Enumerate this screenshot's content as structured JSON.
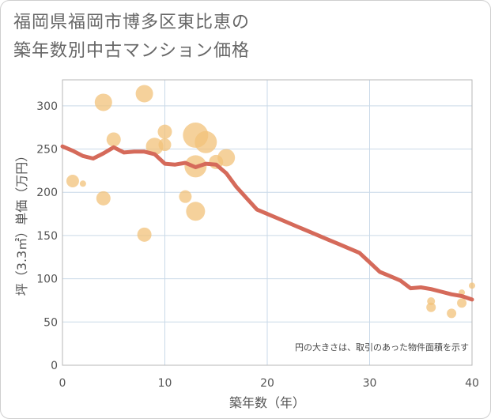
{
  "title_lines": [
    "福岡県福岡市博多区東比恵の",
    "築年数別中古マンション価格"
  ],
  "chart_data": {
    "type": "scatter+line",
    "title": "福岡県福岡市博多区東比恵の築年数別中古マンション価格",
    "xlabel": "築年数（年）",
    "ylabel": "坪（3.3㎡）単価（万円）",
    "xlim": [
      0,
      40
    ],
    "ylim": [
      0,
      330
    ],
    "xticks": [
      0,
      10,
      20,
      30,
      40
    ],
    "yticks": [
      0,
      50,
      100,
      150,
      200,
      250,
      300
    ],
    "grid": true,
    "note": "円の大きさは、取引のあった物件面積を示す",
    "bubble_color": "#f2c27a",
    "line_color": "#d56a5a",
    "scatter": [
      {
        "x": 1,
        "y": 213,
        "size": 8
      },
      {
        "x": 2,
        "y": 210,
        "size": 4
      },
      {
        "x": 4,
        "y": 304,
        "size": 11
      },
      {
        "x": 4,
        "y": 193,
        "size": 9
      },
      {
        "x": 5,
        "y": 261,
        "size": 9
      },
      {
        "x": 8,
        "y": 314,
        "size": 11
      },
      {
        "x": 8,
        "y": 151,
        "size": 9
      },
      {
        "x": 9,
        "y": 253,
        "size": 11
      },
      {
        "x": 10,
        "y": 270,
        "size": 9
      },
      {
        "x": 10,
        "y": 255,
        "size": 8
      },
      {
        "x": 12,
        "y": 195,
        "size": 8
      },
      {
        "x": 13,
        "y": 266,
        "size": 16
      },
      {
        "x": 13,
        "y": 230,
        "size": 14
      },
      {
        "x": 13,
        "y": 178,
        "size": 12
      },
      {
        "x": 14,
        "y": 258,
        "size": 14
      },
      {
        "x": 15,
        "y": 235,
        "size": 9
      },
      {
        "x": 16,
        "y": 240,
        "size": 11
      },
      {
        "x": 36,
        "y": 67,
        "size": 6
      },
      {
        "x": 36,
        "y": 74,
        "size": 5
      },
      {
        "x": 38,
        "y": 60,
        "size": 6
      },
      {
        "x": 39,
        "y": 72,
        "size": 6
      },
      {
        "x": 39,
        "y": 84,
        "size": 4
      },
      {
        "x": 40,
        "y": 92,
        "size": 4
      }
    ],
    "line": {
      "x": [
        0,
        1,
        2,
        3,
        4,
        5,
        6,
        7,
        8,
        9,
        10,
        11,
        12,
        13,
        14,
        15,
        16,
        17,
        18,
        19,
        20,
        21,
        22,
        23,
        24,
        25,
        26,
        27,
        28,
        29,
        30,
        31,
        32,
        33,
        34,
        35,
        36,
        37,
        38,
        39,
        40
      ],
      "y": [
        253,
        248,
        242,
        239,
        245,
        252,
        246,
        247,
        247,
        244,
        233,
        232,
        234,
        229,
        233,
        232,
        222,
        206,
        193,
        180,
        175,
        170,
        165,
        160,
        155,
        150,
        145,
        140,
        135,
        130,
        119,
        108,
        103,
        98,
        89,
        90,
        88,
        85,
        82,
        80,
        76
      ]
    }
  }
}
